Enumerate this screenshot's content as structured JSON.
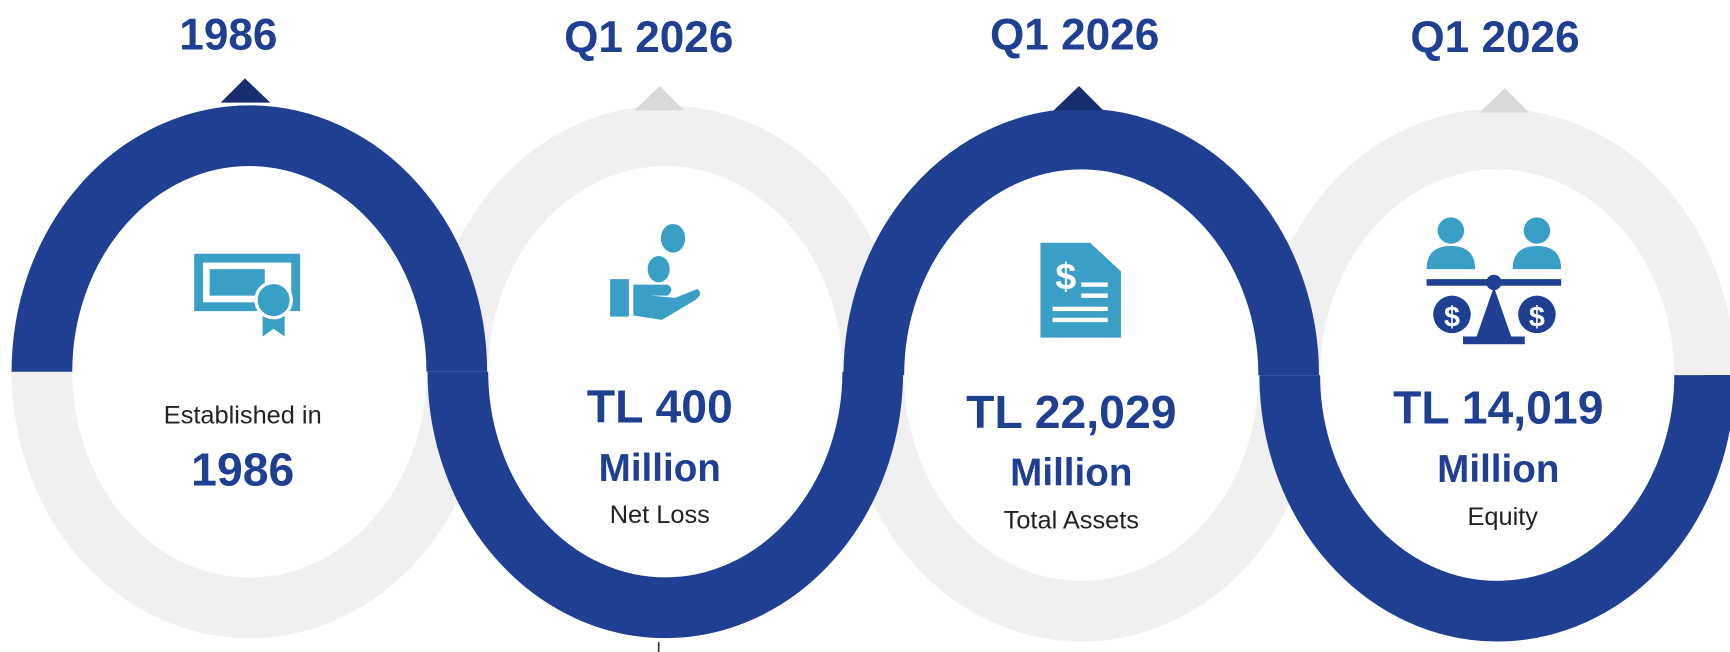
{
  "items": [
    {
      "period": "1986",
      "caption": "Established in",
      "value": "1986"
    },
    {
      "period": "Q1 2026",
      "value": "TL 400",
      "unit": "Million",
      "caption": "Net Loss"
    },
    {
      "period": "Q1 2026",
      "value": "TL 22,029",
      "unit": "Million",
      "caption": "Total Assets"
    },
    {
      "period": "Q1 2026",
      "value": "TL 14,019",
      "unit": "Million",
      "caption": "Equity"
    }
  ]
}
